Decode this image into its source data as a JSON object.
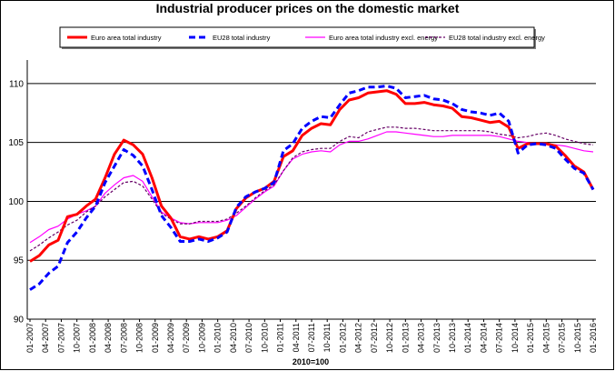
{
  "chart_data": {
    "type": "line",
    "title": "Industrial producer prices on the domestic market",
    "xlabel": "2010=100",
    "ylabel": "",
    "ylim": [
      90,
      112
    ],
    "yticks": [
      90,
      95,
      100,
      105,
      110
    ],
    "legend_position": "top",
    "grid_y": true,
    "x_tick_labels": [
      "01-2007",
      "04-2007",
      "07-2007",
      "10-2007",
      "01-2008",
      "04-2008",
      "07-2008",
      "10-2008",
      "01-2009",
      "04-2009",
      "07-2009",
      "10-2009",
      "01-2010",
      "04-2010",
      "07-2010",
      "10-2010",
      "01-2011",
      "04-2011",
      "07-2011",
      "10-2011",
      "01-2012",
      "04-2012",
      "07-2012",
      "10-2012",
      "01-2013",
      "04-2013",
      "07-2013",
      "10-2013",
      "01-2014",
      "04-2014",
      "07-2014",
      "10-2014",
      "01-2015",
      "04-2015",
      "07-2015",
      "10-2015",
      "01-2016"
    ],
    "series": [
      {
        "name": "Euro area total industry",
        "color": "#ff0000",
        "style": "solid-thick",
        "values": [
          94.9,
          95.4,
          96.3,
          96.7,
          98.7,
          98.9,
          99.6,
          100.2,
          102.0,
          104.0,
          105.2,
          104.8,
          104.0,
          102.0,
          99.6,
          98.6,
          97.0,
          96.8,
          97.0,
          96.8,
          97.0,
          97.5,
          99.4,
          100.3,
          100.8,
          101.1,
          101.7,
          103.8,
          104.3,
          105.6,
          106.2,
          106.6,
          106.5,
          107.8,
          108.6,
          108.8,
          109.2,
          109.3,
          109.4,
          109.1,
          108.3,
          108.3,
          108.4,
          108.2,
          108.1,
          107.9,
          107.2,
          107.1,
          106.9,
          106.7,
          106.8,
          106.3,
          104.5,
          104.9,
          104.9,
          104.9,
          104.7,
          103.9,
          103.0,
          102.5,
          101.0
        ]
      },
      {
        "name": "EU28 total industry",
        "color": "#0000ff",
        "style": "dashed-thick",
        "values": [
          92.5,
          93.0,
          93.9,
          94.5,
          96.5,
          97.4,
          98.6,
          99.6,
          101.6,
          103.0,
          104.4,
          103.9,
          103.0,
          101.0,
          98.8,
          97.8,
          96.6,
          96.6,
          96.8,
          96.6,
          96.9,
          97.4,
          99.5,
          100.4,
          100.8,
          101.1,
          101.6,
          104.3,
          104.9,
          106.2,
          106.8,
          107.2,
          107.1,
          108.2,
          109.2,
          109.4,
          109.7,
          109.7,
          109.8,
          109.6,
          108.8,
          108.9,
          109.0,
          108.7,
          108.6,
          108.3,
          107.8,
          107.6,
          107.5,
          107.3,
          107.5,
          106.8,
          104.1,
          104.8,
          104.9,
          104.8,
          104.5,
          103.6,
          102.8,
          102.4,
          101.0
        ]
      },
      {
        "name": "Euro area total industry excl. energy",
        "color": "#ff00ff",
        "style": "solid-thin",
        "values": [
          96.5,
          97.0,
          97.6,
          97.9,
          98.5,
          98.9,
          99.2,
          99.6,
          100.7,
          101.4,
          102.0,
          102.2,
          101.7,
          100.4,
          99.1,
          98.6,
          98.2,
          98.1,
          98.2,
          98.2,
          98.2,
          98.4,
          98.8,
          99.5,
          100.2,
          100.8,
          101.3,
          102.6,
          103.6,
          104.0,
          104.2,
          104.3,
          104.2,
          104.8,
          105.1,
          105.1,
          105.3,
          105.6,
          105.9,
          105.9,
          105.8,
          105.7,
          105.6,
          105.5,
          105.5,
          105.6,
          105.6,
          105.6,
          105.6,
          105.6,
          105.5,
          105.3,
          105.1,
          105.0,
          104.9,
          104.9,
          104.8,
          104.7,
          104.5,
          104.3,
          104.2
        ]
      },
      {
        "name": "EU28 total industry excl. energy",
        "color": "#660066",
        "style": "dashed-thin",
        "values": [
          95.8,
          96.3,
          96.9,
          97.4,
          98.0,
          98.4,
          99.1,
          99.6,
          100.4,
          101.0,
          101.6,
          101.7,
          101.3,
          100.2,
          99.0,
          98.5,
          98.1,
          98.1,
          98.3,
          98.3,
          98.3,
          98.5,
          99.0,
          99.6,
          100.3,
          100.9,
          101.4,
          102.6,
          103.7,
          104.2,
          104.4,
          104.5,
          104.5,
          105.1,
          105.5,
          105.4,
          105.9,
          106.1,
          106.3,
          106.3,
          106.2,
          106.2,
          106.1,
          106.0,
          106.0,
          106.0,
          106.0,
          106.0,
          106.0,
          105.9,
          105.7,
          105.6,
          105.4,
          105.5,
          105.7,
          105.8,
          105.6,
          105.3,
          105.1,
          104.9,
          104.8
        ]
      }
    ]
  }
}
